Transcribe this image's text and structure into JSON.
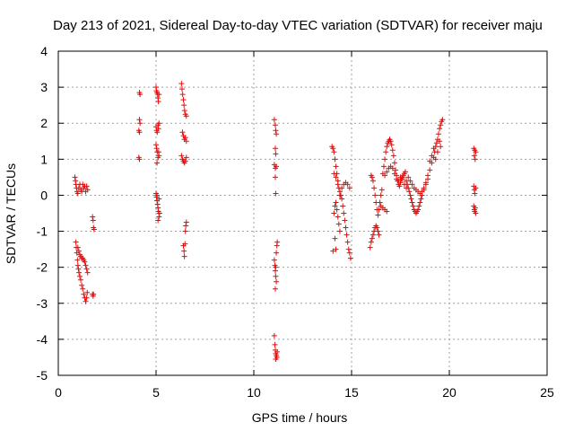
{
  "chart_data": {
    "type": "scatter",
    "title": "Day 213 of 2021, Sidereal Day-to-day VTEC variation (SDTVAR) for receiver maju",
    "xlabel": "GPS time / hours",
    "ylabel": "SDTVAR / TECUs",
    "xlim": [
      0,
      25
    ],
    "ylim": [
      -5,
      4
    ],
    "xticks": [
      0,
      5,
      10,
      15,
      20,
      25
    ],
    "yticks": [
      -5,
      -4,
      -3,
      -2,
      -1,
      0,
      1,
      2,
      3,
      4
    ],
    "grid": true,
    "marker": "+",
    "color": "#ff0000",
    "series": [
      {
        "name": "SDTVAR",
        "points": [
          [
            0.85,
            0.5
          ],
          [
            0.88,
            0.4
          ],
          [
            0.9,
            0.3
          ],
          [
            0.93,
            0.2
          ],
          [
            0.96,
            0.1
          ],
          [
            1.0,
            0.05
          ],
          [
            1.05,
            0.2
          ],
          [
            1.1,
            0.3
          ],
          [
            1.15,
            0.15
          ],
          [
            1.2,
            0.1
          ],
          [
            1.25,
            0.3
          ],
          [
            1.3,
            0.2
          ],
          [
            1.35,
            0.25
          ],
          [
            1.4,
            0.1
          ],
          [
            1.45,
            0.25
          ],
          [
            1.5,
            0.15
          ],
          [
            0.9,
            -1.3
          ],
          [
            0.92,
            -1.45
          ],
          [
            0.95,
            -1.6
          ],
          [
            0.98,
            -1.8
          ],
          [
            1.0,
            -1.95
          ],
          [
            1.03,
            -2.05
          ],
          [
            1.06,
            -2.15
          ],
          [
            1.1,
            -2.25
          ],
          [
            1.15,
            -2.35
          ],
          [
            1.2,
            -2.5
          ],
          [
            1.25,
            -2.6
          ],
          [
            1.3,
            -2.75
          ],
          [
            1.35,
            -2.85
          ],
          [
            1.4,
            -2.95
          ],
          [
            1.45,
            -2.85
          ],
          [
            1.48,
            -2.7
          ],
          [
            1.0,
            -1.45
          ],
          [
            1.05,
            -1.55
          ],
          [
            1.1,
            -1.65
          ],
          [
            1.15,
            -1.7
          ],
          [
            1.2,
            -1.75
          ],
          [
            1.25,
            -1.75
          ],
          [
            1.3,
            -1.8
          ],
          [
            1.35,
            -1.85
          ],
          [
            1.4,
            -1.95
          ],
          [
            1.45,
            -2.05
          ],
          [
            1.5,
            -2.15
          ],
          [
            1.75,
            -0.6
          ],
          [
            1.78,
            -0.7
          ],
          [
            1.8,
            -0.9
          ],
          [
            1.83,
            -0.95
          ],
          [
            1.75,
            -2.75
          ],
          [
            1.78,
            -2.8
          ],
          [
            1.8,
            -2.75
          ],
          [
            4.15,
            2.85
          ],
          [
            4.18,
            2.8
          ],
          [
            4.15,
            2.1
          ],
          [
            4.18,
            2.0
          ],
          [
            4.12,
            1.8
          ],
          [
            4.15,
            1.75
          ],
          [
            4.12,
            1.05
          ],
          [
            4.15,
            1.0
          ],
          [
            5.0,
            3.0
          ],
          [
            5.02,
            2.9
          ],
          [
            5.05,
            2.85
          ],
          [
            5.08,
            2.8
          ],
          [
            5.1,
            2.7
          ],
          [
            5.12,
            2.6
          ],
          [
            5.15,
            2.8
          ],
          [
            5.0,
            1.9
          ],
          [
            5.03,
            1.8
          ],
          [
            5.06,
            1.75
          ],
          [
            5.1,
            1.95
          ],
          [
            5.12,
            1.85
          ],
          [
            5.15,
            2.0
          ],
          [
            5.0,
            1.4
          ],
          [
            5.03,
            1.3
          ],
          [
            5.06,
            1.2
          ],
          [
            5.1,
            1.05
          ],
          [
            5.13,
            1.2
          ],
          [
            5.15,
            1.1
          ],
          [
            5.05,
            0.9
          ],
          [
            5.0,
            0.05
          ],
          [
            5.02,
            -0.05
          ],
          [
            5.05,
            -0.15
          ],
          [
            5.08,
            -0.25
          ],
          [
            5.1,
            -0.35
          ],
          [
            5.12,
            -0.45
          ],
          [
            5.15,
            -0.6
          ],
          [
            5.18,
            -0.5
          ],
          [
            5.1,
            -0.7
          ],
          [
            5.05,
            0.0
          ],
          [
            5.15,
            -0.1
          ],
          [
            6.3,
            3.1
          ],
          [
            6.33,
            2.95
          ],
          [
            6.36,
            2.8
          ],
          [
            6.4,
            2.65
          ],
          [
            6.43,
            2.5
          ],
          [
            6.46,
            2.35
          ],
          [
            6.5,
            2.25
          ],
          [
            6.55,
            2.2
          ],
          [
            6.35,
            1.75
          ],
          [
            6.4,
            1.65
          ],
          [
            6.45,
            1.55
          ],
          [
            6.5,
            1.6
          ],
          [
            6.55,
            1.5
          ],
          [
            6.3,
            1.1
          ],
          [
            6.35,
            1.0
          ],
          [
            6.4,
            0.95
          ],
          [
            6.45,
            0.9
          ],
          [
            6.5,
            0.95
          ],
          [
            6.55,
            1.05
          ],
          [
            6.4,
            -1.4
          ],
          [
            6.43,
            -1.55
          ],
          [
            6.45,
            -1.7
          ],
          [
            6.48,
            -1.35
          ],
          [
            6.5,
            -1.0
          ],
          [
            6.52,
            -0.85
          ],
          [
            6.55,
            -0.75
          ],
          [
            11.05,
            2.1
          ],
          [
            11.1,
            1.95
          ],
          [
            11.12,
            1.8
          ],
          [
            11.15,
            1.7
          ],
          [
            11.1,
            1.3
          ],
          [
            11.12,
            1.15
          ],
          [
            11.05,
            0.85
          ],
          [
            11.1,
            0.75
          ],
          [
            11.15,
            0.8
          ],
          [
            11.1,
            0.5
          ],
          [
            11.12,
            0.05
          ],
          [
            11.05,
            -1.8
          ],
          [
            11.08,
            -1.95
          ],
          [
            11.1,
            -2.1
          ],
          [
            11.12,
            -2.25
          ],
          [
            11.15,
            -2.4
          ],
          [
            11.1,
            -2.6
          ],
          [
            11.12,
            -2.0
          ],
          [
            11.15,
            -1.6
          ],
          [
            11.18,
            -1.4
          ],
          [
            11.2,
            -1.3
          ],
          [
            11.05,
            -3.9
          ],
          [
            11.08,
            -4.15
          ],
          [
            11.1,
            -4.3
          ],
          [
            11.12,
            -4.4
          ],
          [
            11.15,
            -4.45
          ],
          [
            11.18,
            -4.5
          ],
          [
            11.2,
            -4.35
          ],
          [
            11.12,
            -4.55
          ],
          [
            14.0,
            1.35
          ],
          [
            14.05,
            1.3
          ],
          [
            14.1,
            1.2
          ],
          [
            14.15,
            1.0
          ],
          [
            14.2,
            0.8
          ],
          [
            14.25,
            0.6
          ],
          [
            14.3,
            0.4
          ],
          [
            14.35,
            0.2
          ],
          [
            14.4,
            0.1
          ],
          [
            14.45,
            0.0
          ],
          [
            14.5,
            -0.1
          ],
          [
            14.55,
            -0.3
          ],
          [
            14.6,
            -0.5
          ],
          [
            14.65,
            -0.7
          ],
          [
            14.7,
            -0.9
          ],
          [
            14.75,
            -1.1
          ],
          [
            14.8,
            -1.3
          ],
          [
            14.85,
            -1.5
          ],
          [
            14.9,
            -1.6
          ],
          [
            14.95,
            -1.75
          ],
          [
            14.1,
            -0.5
          ],
          [
            14.15,
            -0.3
          ],
          [
            14.2,
            -0.2
          ],
          [
            14.25,
            -0.4
          ],
          [
            14.3,
            -0.6
          ],
          [
            14.35,
            -0.8
          ],
          [
            14.4,
            -1.0
          ],
          [
            14.2,
            -1.5
          ],
          [
            14.05,
            -1.55
          ],
          [
            14.15,
            -1.2
          ],
          [
            14.1,
            0.6
          ],
          [
            14.2,
            0.5
          ],
          [
            14.3,
            0.3
          ],
          [
            14.4,
            0.0
          ],
          [
            14.5,
            0.2
          ],
          [
            14.6,
            0.3
          ],
          [
            14.7,
            0.35
          ],
          [
            14.8,
            0.3
          ],
          [
            14.9,
            0.2
          ],
          [
            15.95,
            -1.45
          ],
          [
            16.0,
            -1.3
          ],
          [
            16.05,
            -1.2
          ],
          [
            16.1,
            -1.1
          ],
          [
            16.15,
            -1.0
          ],
          [
            16.2,
            -0.9
          ],
          [
            16.25,
            -0.85
          ],
          [
            16.3,
            -0.9
          ],
          [
            16.35,
            -1.0
          ],
          [
            16.4,
            -1.1
          ],
          [
            16.0,
            0.55
          ],
          [
            16.05,
            0.5
          ],
          [
            16.1,
            0.4
          ],
          [
            16.15,
            0.2
          ],
          [
            16.2,
            0.0
          ],
          [
            16.25,
            -0.2
          ],
          [
            16.3,
            -0.4
          ],
          [
            16.35,
            -0.55
          ],
          [
            16.4,
            -0.4
          ],
          [
            16.45,
            -0.2
          ],
          [
            16.5,
            0.0
          ],
          [
            16.55,
            0.15
          ],
          [
            16.5,
            -0.3
          ],
          [
            16.6,
            -0.35
          ],
          [
            16.7,
            -0.4
          ],
          [
            16.8,
            -0.45
          ],
          [
            16.6,
            0.6
          ],
          [
            16.65,
            0.8
          ],
          [
            16.7,
            1.0
          ],
          [
            16.75,
            1.2
          ],
          [
            16.8,
            1.35
          ],
          [
            16.85,
            1.45
          ],
          [
            16.9,
            1.5
          ],
          [
            16.95,
            1.55
          ],
          [
            17.0,
            1.5
          ],
          [
            17.05,
            1.4
          ],
          [
            17.1,
            1.25
          ],
          [
            17.15,
            1.1
          ],
          [
            17.2,
            0.9
          ],
          [
            17.25,
            0.7
          ],
          [
            17.3,
            0.55
          ],
          [
            17.35,
            0.4
          ],
          [
            17.4,
            0.3
          ],
          [
            17.45,
            0.25
          ],
          [
            17.5,
            0.35
          ],
          [
            17.55,
            0.45
          ],
          [
            17.6,
            0.5
          ],
          [
            17.65,
            0.55
          ],
          [
            17.7,
            0.6
          ],
          [
            17.75,
            0.65
          ],
          [
            16.7,
            0.55
          ],
          [
            16.8,
            0.65
          ],
          [
            16.9,
            0.75
          ],
          [
            17.0,
            0.8
          ],
          [
            17.1,
            0.75
          ],
          [
            17.2,
            0.6
          ],
          [
            17.3,
            0.45
          ],
          [
            17.4,
            0.4
          ],
          [
            17.5,
            0.5
          ],
          [
            17.6,
            0.45
          ],
          [
            17.7,
            0.3
          ],
          [
            17.8,
            0.2
          ],
          [
            17.8,
            0.4
          ],
          [
            17.85,
            0.3
          ],
          [
            17.9,
            0.2
          ],
          [
            17.95,
            0.1
          ],
          [
            18.0,
            0.0
          ],
          [
            18.05,
            -0.1
          ],
          [
            18.1,
            -0.2
          ],
          [
            18.15,
            -0.3
          ],
          [
            18.2,
            -0.4
          ],
          [
            18.25,
            -0.45
          ],
          [
            18.3,
            -0.5
          ],
          [
            18.35,
            -0.45
          ],
          [
            18.4,
            -0.4
          ],
          [
            18.45,
            -0.3
          ],
          [
            18.5,
            -0.2
          ],
          [
            18.55,
            -0.1
          ],
          [
            17.9,
            0.5
          ],
          [
            18.0,
            0.4
          ],
          [
            18.1,
            0.3
          ],
          [
            18.2,
            0.2
          ],
          [
            18.3,
            0.15
          ],
          [
            18.4,
            0.1
          ],
          [
            18.5,
            0.05
          ],
          [
            18.6,
            0.1
          ],
          [
            18.7,
            0.2
          ],
          [
            18.8,
            0.3
          ],
          [
            18.9,
            0.45
          ],
          [
            18.6,
            0.0
          ],
          [
            18.7,
            0.15
          ],
          [
            18.8,
            0.35
          ],
          [
            18.9,
            0.55
          ],
          [
            19.0,
            0.7
          ],
          [
            19.1,
            0.9
          ],
          [
            19.2,
            1.05
          ],
          [
            19.25,
            1.2
          ],
          [
            19.3,
            1.35
          ],
          [
            19.35,
            1.45
          ],
          [
            19.4,
            1.55
          ],
          [
            19.45,
            1.7
          ],
          [
            19.5,
            1.85
          ],
          [
            19.55,
            1.95
          ],
          [
            19.6,
            2.05
          ],
          [
            19.65,
            2.1
          ],
          [
            19.0,
            0.95
          ],
          [
            19.1,
            1.1
          ],
          [
            19.2,
            1.3
          ],
          [
            19.3,
            1.0
          ],
          [
            19.4,
            1.2
          ],
          [
            19.5,
            1.5
          ],
          [
            19.55,
            1.35
          ],
          [
            21.25,
            1.3
          ],
          [
            21.3,
            1.25
          ],
          [
            21.35,
            1.2
          ],
          [
            21.28,
            1.1
          ],
          [
            21.32,
            1.0
          ],
          [
            21.25,
            0.25
          ],
          [
            21.28,
            0.15
          ],
          [
            21.3,
            0.05
          ],
          [
            21.35,
            0.2
          ],
          [
            21.25,
            -0.3
          ],
          [
            21.28,
            -0.4
          ],
          [
            21.3,
            -0.45
          ],
          [
            21.35,
            -0.5
          ],
          [
            21.32,
            -0.35
          ]
        ]
      }
    ]
  }
}
